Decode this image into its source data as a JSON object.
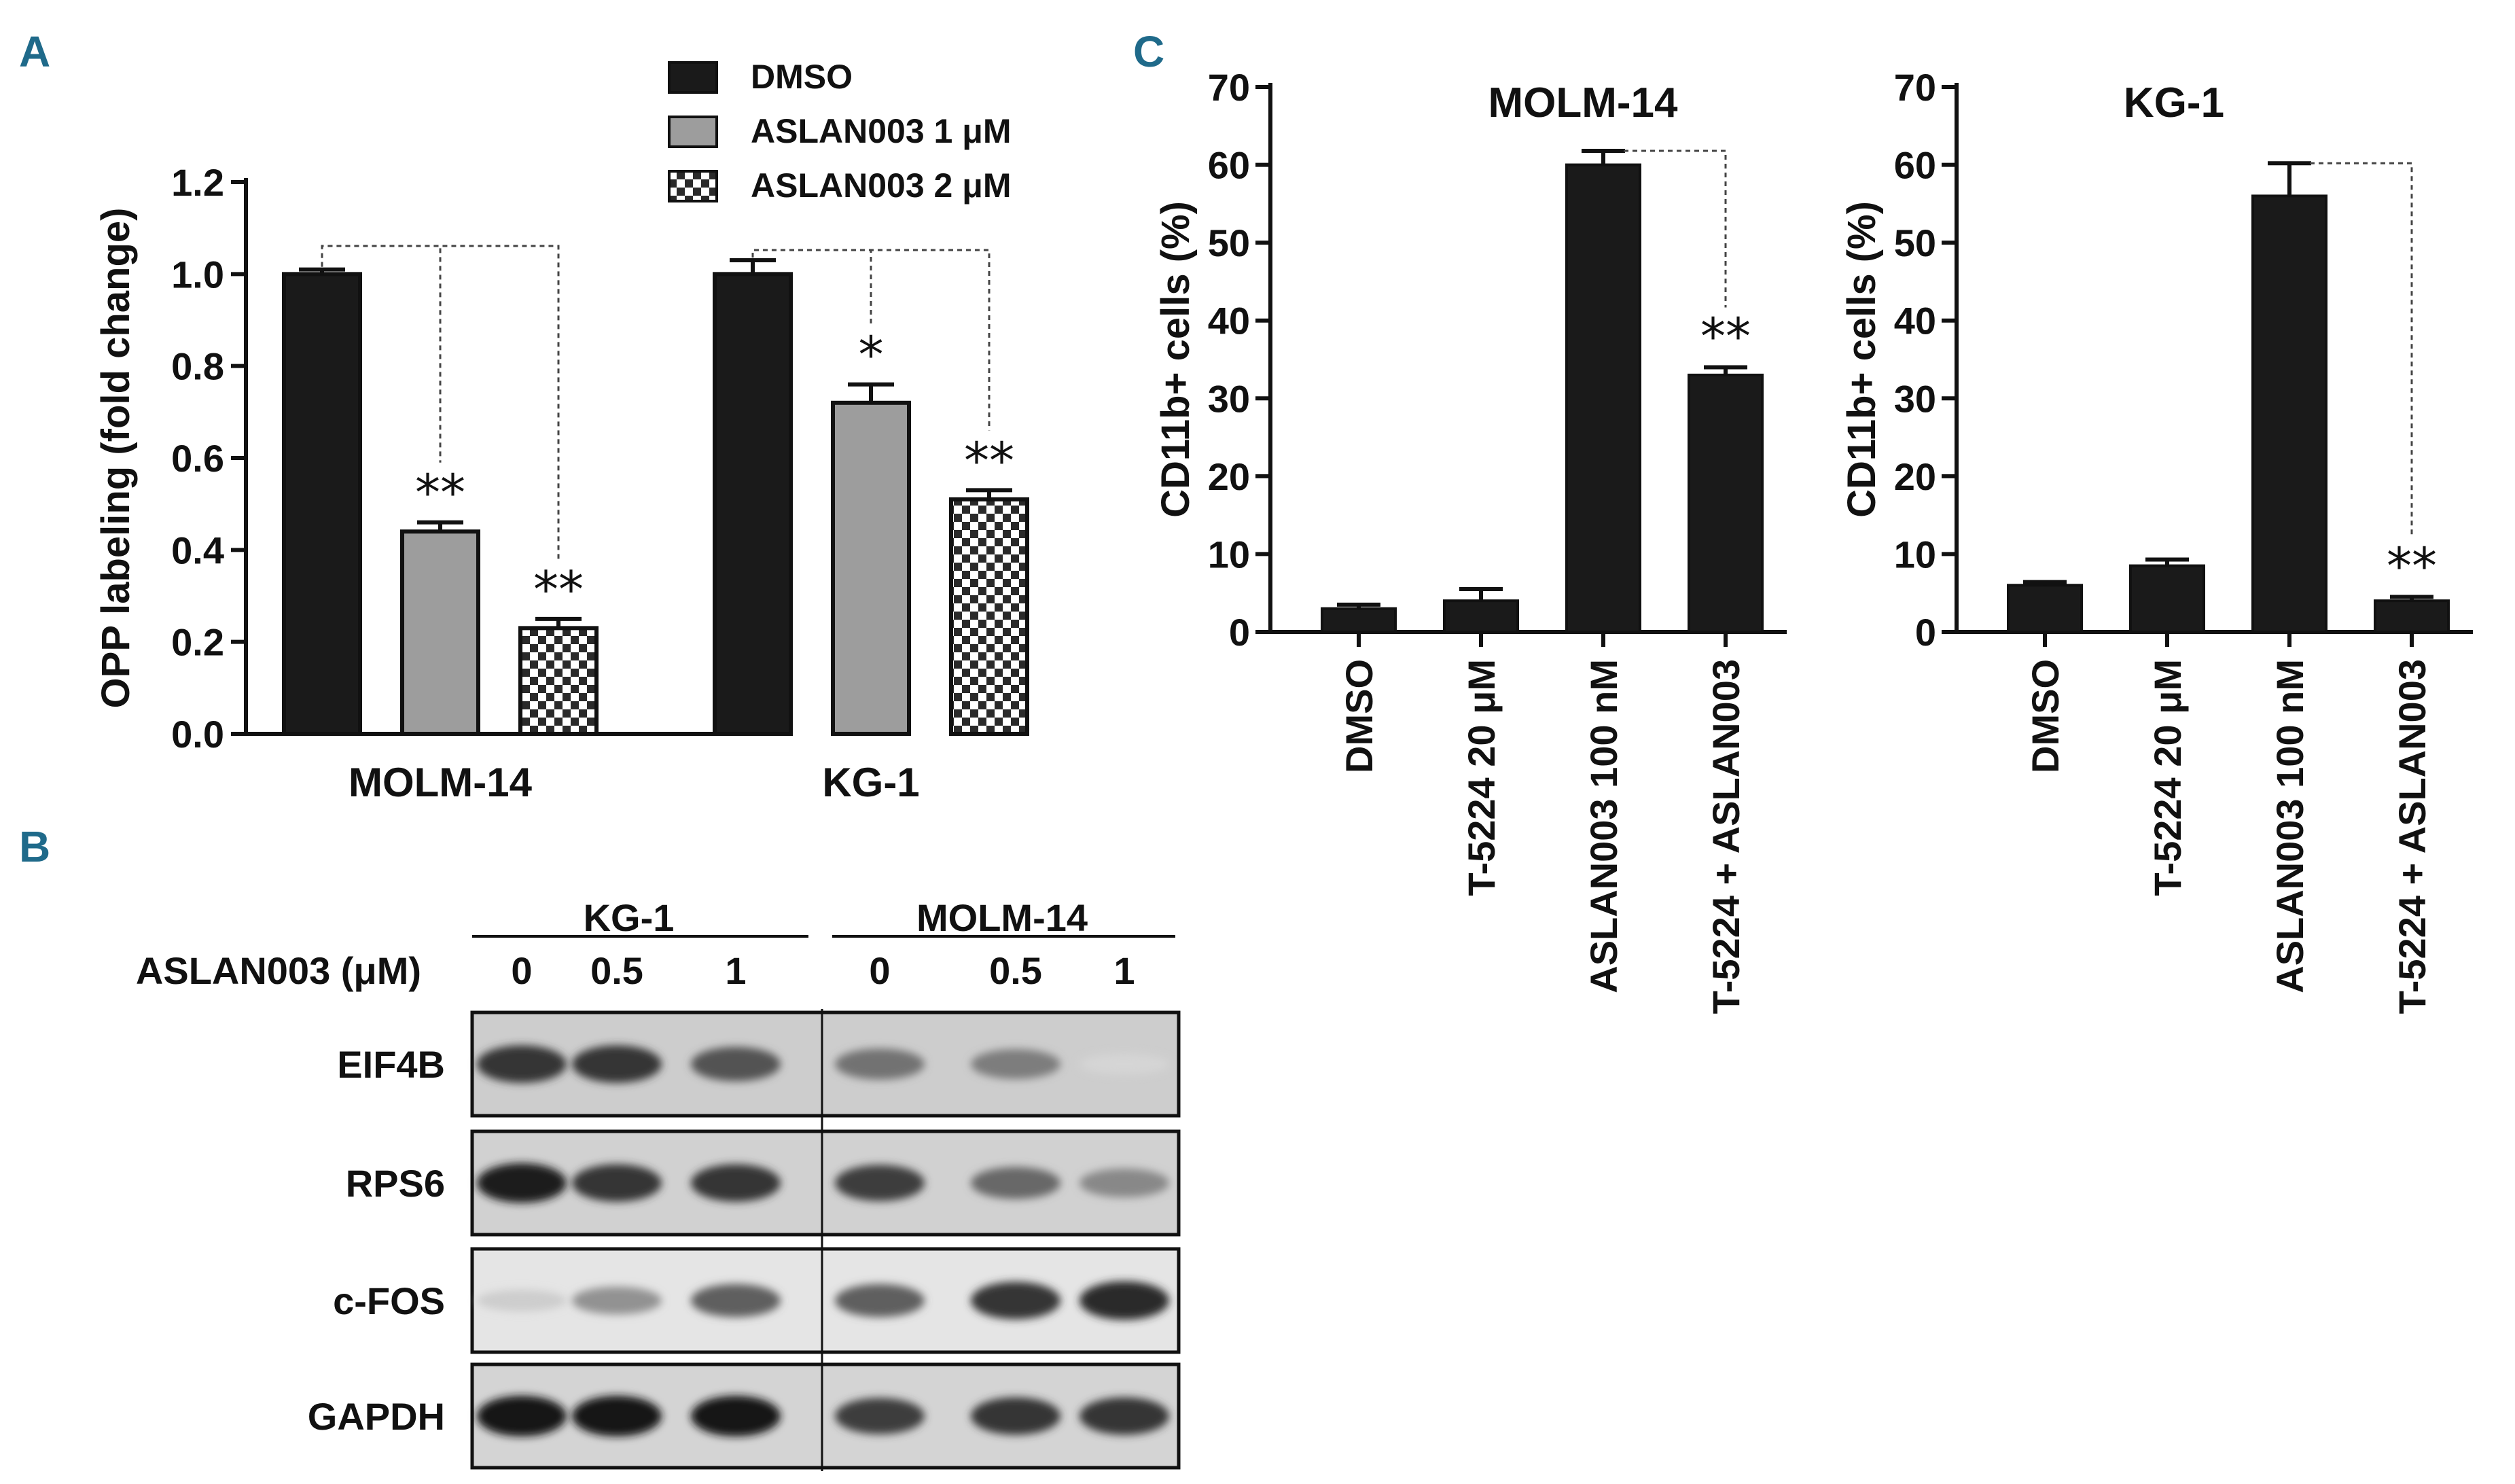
{
  "panels": {
    "a": "A",
    "b": "B",
    "c": "C"
  },
  "chart_data": [
    {
      "type": "bar",
      "panel": "A",
      "categories": [
        "MOLM-14",
        "KG-1"
      ],
      "series": [
        {
          "name": "DMSO",
          "values": [
            1.0,
            1.0
          ],
          "errors": [
            0.01,
            0.03
          ],
          "fill": "#1a1a1a"
        },
        {
          "name": "ASLAN003 1 μM",
          "values": [
            0.44,
            0.72
          ],
          "errors": [
            0.02,
            0.04
          ],
          "fill": "#9d9d9d"
        },
        {
          "name": "ASLAN003 2 μM",
          "values": [
            0.23,
            0.51
          ],
          "errors": [
            0.02,
            0.02
          ],
          "fill": "checker"
        }
      ],
      "significance": [
        [
          "**",
          "*"
        ],
        [
          "**",
          "**"
        ]
      ],
      "ylabel": "OPP labeling (fold change)",
      "ylim": [
        0,
        1.2
      ],
      "yticks": [
        "0.0",
        "0.2",
        "0.4",
        "0.6",
        "0.8",
        "1.0",
        "1.2"
      ],
      "legend": "top-right"
    },
    {
      "type": "bar",
      "panel": "C",
      "title": "MOLM-14",
      "categories": [
        "DMSO",
        "T-5224 20 μM",
        "ASLAN003 100 nM",
        "T-5224 + ASLAN003"
      ],
      "values": [
        3,
        4,
        60,
        33
      ],
      "errors": [
        0.5,
        1.5,
        1.8,
        1.0
      ],
      "significance": "**",
      "ylabel": "CD11b+ cells (%)",
      "ylim": [
        0,
        70
      ],
      "yticks": [
        "0",
        "10",
        "20",
        "30",
        "40",
        "50",
        "60",
        "70"
      ]
    },
    {
      "type": "bar",
      "panel": "C",
      "title": "KG-1",
      "categories": [
        "DMSO",
        "T-5224 20 μM",
        "ASLAN003 100 nM",
        "T-5224 + ASLAN003"
      ],
      "values": [
        6,
        8.5,
        56,
        4
      ],
      "errors": [
        0.4,
        0.8,
        4.2,
        0.5
      ],
      "significance": "**",
      "ylabel": "CD11b+ cells (%)",
      "ylim": [
        0,
        70
      ],
      "yticks": [
        "0",
        "10",
        "20",
        "30",
        "40",
        "50",
        "60",
        "70"
      ]
    }
  ],
  "western_blot": {
    "groups": [
      "KG-1",
      "MOLM-14"
    ],
    "treatment_label": "ASLAN003 (μM)",
    "lanes": [
      "0",
      "0.5",
      "1",
      "0",
      "0.5",
      "1"
    ],
    "rows": [
      {
        "label": "EIF4B",
        "intensities": [
          0.85,
          0.85,
          0.7,
          0.55,
          0.5,
          0.08
        ],
        "background": 0.42
      },
      {
        "label": "RPS6",
        "intensities": [
          0.95,
          0.85,
          0.85,
          0.8,
          0.6,
          0.45
        ],
        "background": 0.38
      },
      {
        "label": "c-FOS",
        "intensities": [
          0.12,
          0.4,
          0.65,
          0.65,
          0.85,
          0.9
        ],
        "background": 0.22
      },
      {
        "label": "GAPDH",
        "intensities": [
          1.0,
          1.0,
          1.0,
          0.8,
          0.85,
          0.85
        ],
        "background": 0.36
      }
    ]
  }
}
